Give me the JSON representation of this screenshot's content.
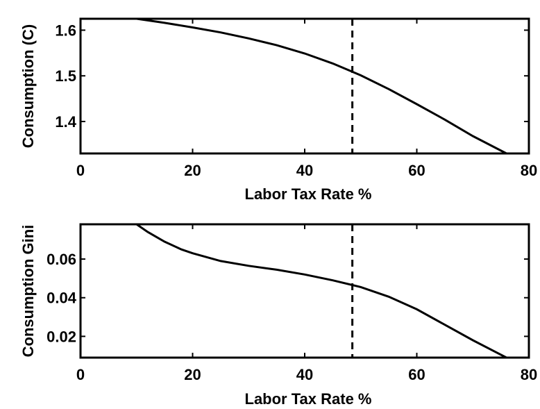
{
  "chart_data": [
    {
      "type": "line",
      "xlabel": "Labor Tax Rate %",
      "ylabel": "Consumption (C)",
      "xlim": [
        0,
        80
      ],
      "ylim": [
        1.33,
        1.625
      ],
      "xticks": [
        0,
        20,
        40,
        60,
        80
      ],
      "yticks": [
        1.4,
        1.5,
        1.6
      ],
      "xtick_labels": [
        "0",
        "20",
        "40",
        "60",
        "80"
      ],
      "ytick_labels": [
        "1.4",
        "1.5",
        "1.6"
      ],
      "grid": false,
      "reference_line": {
        "x": 48.5,
        "style": "dashed"
      },
      "series": [
        {
          "x": [
            10,
            15,
            20,
            25,
            30,
            35,
            40,
            45,
            50,
            55,
            60,
            65,
            70,
            76
          ],
          "y": [
            1.625,
            1.616,
            1.606,
            1.595,
            1.582,
            1.567,
            1.549,
            1.527,
            1.501,
            1.471,
            1.438,
            1.404,
            1.368,
            1.33
          ]
        }
      ]
    },
    {
      "type": "line",
      "xlabel": "Labor Tax Rate %",
      "ylabel": "Consumption Gini",
      "xlim": [
        0,
        80
      ],
      "ylim": [
        0.009,
        0.078
      ],
      "xticks": [
        0,
        20,
        40,
        60,
        80
      ],
      "yticks": [
        0.02,
        0.04,
        0.06
      ],
      "xtick_labels": [
        "0",
        "20",
        "40",
        "60",
        "80"
      ],
      "ytick_labels": [
        "0.02",
        "0.04",
        "0.06"
      ],
      "grid": false,
      "reference_line": {
        "x": 48.5,
        "style": "dashed"
      },
      "series": [
        {
          "x": [
            10,
            12,
            15,
            18,
            20,
            25,
            30,
            35,
            40,
            45,
            50,
            55,
            60,
            65,
            70,
            76
          ],
          "y": [
            0.078,
            0.074,
            0.069,
            0.065,
            0.063,
            0.059,
            0.0565,
            0.0545,
            0.052,
            0.049,
            0.0455,
            0.0405,
            0.034,
            0.026,
            0.018,
            0.009
          ]
        }
      ]
    }
  ]
}
